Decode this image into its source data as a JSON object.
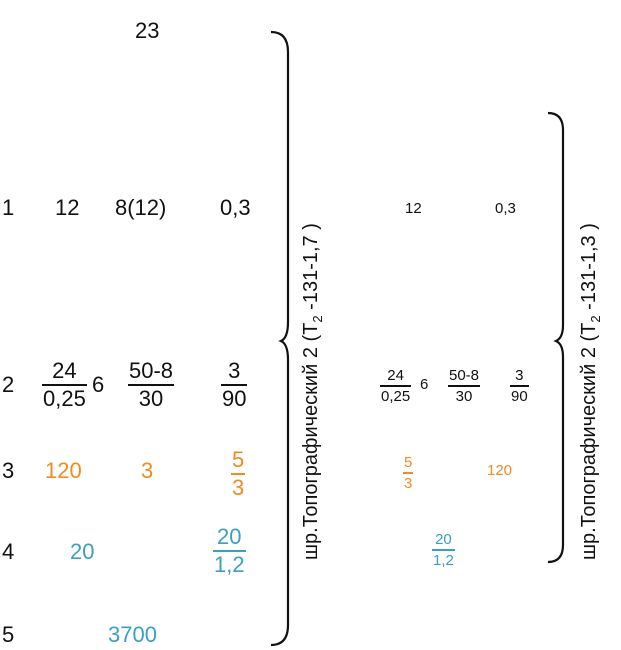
{
  "page_number": "23",
  "rows": [
    "1",
    "2",
    "3",
    "4",
    "5"
  ],
  "group1": {
    "label_prefix": "шр.Топографический 2 (Т",
    "label_sub": "2",
    "label_suffix": " -131-1,7 )",
    "row1": [
      "12",
      "8(12)",
      "0,3"
    ],
    "row2": {
      "f1_num": "24",
      "f1_den": "0,25",
      "f1_suffix": "6",
      "f2_num": "50-8",
      "f2_den": "30",
      "f3_num": "3",
      "f3_den": "90"
    },
    "row3": {
      "a": "120",
      "b": "3",
      "f_num": "5",
      "f_den": "3"
    },
    "row4": {
      "a": "20",
      "f_num": "20",
      "f_den": "1,2"
    },
    "row5": {
      "a": "3700"
    }
  },
  "group2": {
    "label_prefix": "шр.Топографический 2 (Т",
    "label_sub": "2",
    "label_suffix": " -131-1,3 )",
    "row1": [
      "12",
      "0,3"
    ],
    "row2": {
      "f1_num": "24",
      "f1_den": "0,25",
      "f1_suffix": "6",
      "f2_num": "50-8",
      "f2_den": "30",
      "f3_num": "3",
      "f3_den": "90"
    },
    "row3": {
      "f_num": "5",
      "f_den": "3",
      "a": "120"
    },
    "row4": {
      "f_num": "20",
      "f_den": "1,2"
    }
  },
  "colors": {
    "ink": "#111111",
    "orange": "#f28a1e",
    "teal": "#3a9fc0"
  }
}
